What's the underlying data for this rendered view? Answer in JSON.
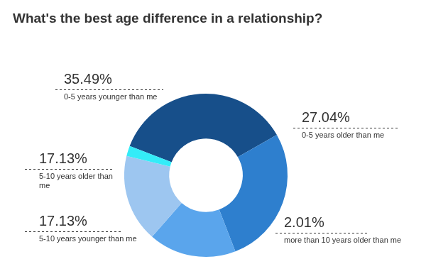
{
  "chart_data": {
    "type": "doughnut",
    "title": "What's the best age difference in a relationship?",
    "categories": [
      "0-5 years younger than me",
      "0-5 years older than me",
      "5-10 years older than me",
      "5-10 years younger than me",
      "more than 10 years older than me"
    ],
    "values": [
      35.49,
      27.04,
      17.13,
      17.13,
      2.01
    ],
    "value_labels": [
      "35.49%",
      "27.04%",
      "17.13%",
      "17.13%",
      "2.01%"
    ],
    "colors": [
      "#174f8a",
      "#2e7fce",
      "#5aa5ec",
      "#9dc6f0",
      "#34ecf8"
    ],
    "data_labels": true
  }
}
